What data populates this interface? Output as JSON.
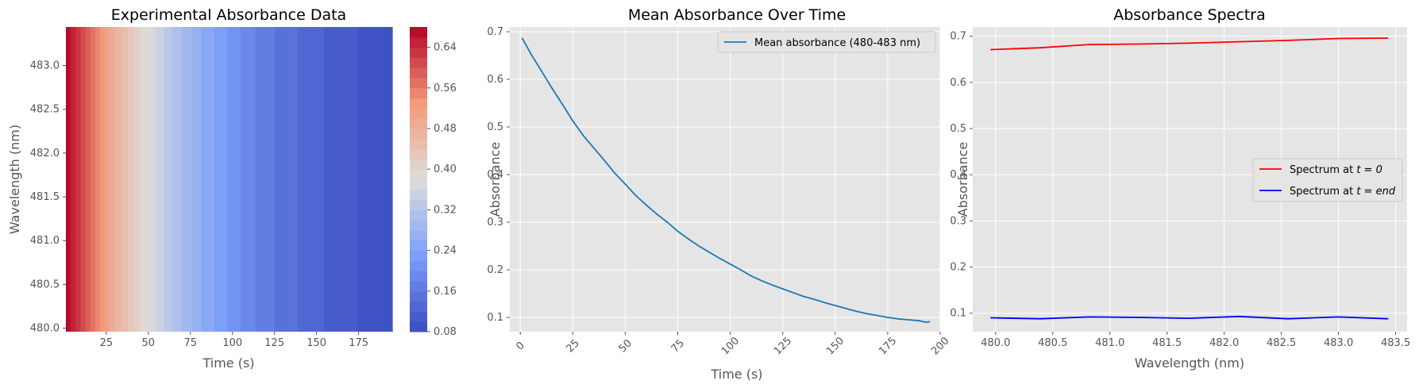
{
  "chart_data": [
    {
      "type": "heatmap",
      "title": "Experimental Absorbance Data",
      "xlabel": "Time (s)",
      "ylabel": "Wavelength (nm)",
      "xlim": [
        1,
        195
      ],
      "ylim": [
        479.96,
        483.44
      ],
      "xticks": [
        "25",
        "50",
        "75",
        "100",
        "125",
        "150",
        "175"
      ],
      "yticks": [
        "480.0",
        "480.5",
        "481.0",
        "481.5",
        "482.0",
        "482.5",
        "483.0"
      ],
      "colormap": "coolwarm",
      "colorbar": {
        "range": [
          0.08,
          0.68
        ],
        "ticks": [
          "0.08",
          "0.16",
          "0.24",
          "0.32",
          "0.40",
          "0.48",
          "0.56",
          "0.64"
        ]
      },
      "grid": false
    },
    {
      "type": "line",
      "title": "Mean Absorbance Over Time",
      "xlabel": "Time (s)",
      "ylabel": "Absorbance",
      "xlim": [
        -5,
        200
      ],
      "ylim": [
        0.07,
        0.71
      ],
      "xticks": [
        "0",
        "25",
        "50",
        "75",
        "100",
        "125",
        "150",
        "175",
        "200"
      ],
      "yticks": [
        "0.1",
        "0.2",
        "0.3",
        "0.4",
        "0.5",
        "0.6",
        "0.7"
      ],
      "legend_position": "upper-right",
      "grid": true,
      "series": [
        {
          "name": "Mean absorbance (480-483 nm)",
          "color": "#1f77b4",
          "x": [
            1,
            5,
            10,
            15,
            20,
            25,
            30,
            35,
            40,
            45,
            50,
            55,
            60,
            65,
            70,
            75,
            80,
            85,
            90,
            95,
            100,
            105,
            110,
            115,
            120,
            125,
            130,
            135,
            140,
            145,
            150,
            155,
            160,
            165,
            170,
            175,
            180,
            185,
            190,
            193,
            195
          ],
          "values": [
            0.686,
            0.654,
            0.618,
            0.582,
            0.548,
            0.513,
            0.482,
            0.456,
            0.43,
            0.403,
            0.38,
            0.356,
            0.336,
            0.317,
            0.3,
            0.281,
            0.265,
            0.25,
            0.237,
            0.224,
            0.212,
            0.2,
            0.187,
            0.177,
            0.168,
            0.16,
            0.152,
            0.144,
            0.138,
            0.131,
            0.125,
            0.119,
            0.113,
            0.108,
            0.104,
            0.1,
            0.097,
            0.095,
            0.093,
            0.09,
            0.091
          ]
        }
      ]
    },
    {
      "type": "line",
      "title": "Absorbance Spectra",
      "xlabel": "Wavelength (nm)",
      "ylabel": "Absorbance",
      "xlim": [
        479.8,
        483.6
      ],
      "ylim": [
        0.06,
        0.72
      ],
      "xticks": [
        "480.0",
        "480.5",
        "481.0",
        "481.5",
        "482.0",
        "482.5",
        "483.0",
        "483.5"
      ],
      "yticks": [
        "0.1",
        "0.2",
        "0.3",
        "0.4",
        "0.5",
        "0.6",
        "0.7"
      ],
      "legend_position": "center-right",
      "grid": true,
      "series": [
        {
          "name": "Spectrum at t = 0",
          "name_prefix": "Spectrum at ",
          "name_math": "t = 0",
          "color": "#ff0000",
          "x": [
            479.96,
            480.39,
            480.82,
            481.26,
            481.69,
            482.13,
            482.56,
            483.0,
            483.43
          ],
          "values": [
            0.671,
            0.675,
            0.682,
            0.683,
            0.685,
            0.688,
            0.691,
            0.695,
            0.696
          ]
        },
        {
          "name": "Spectrum at t = end",
          "name_prefix": "Spectrum at ",
          "name_math": "t = end",
          "color": "#0000ff",
          "x": [
            479.96,
            480.39,
            480.82,
            481.26,
            481.69,
            482.13,
            482.56,
            483.0,
            483.43
          ],
          "values": [
            0.09,
            0.088,
            0.092,
            0.091,
            0.089,
            0.093,
            0.088,
            0.092,
            0.088
          ]
        }
      ]
    }
  ]
}
